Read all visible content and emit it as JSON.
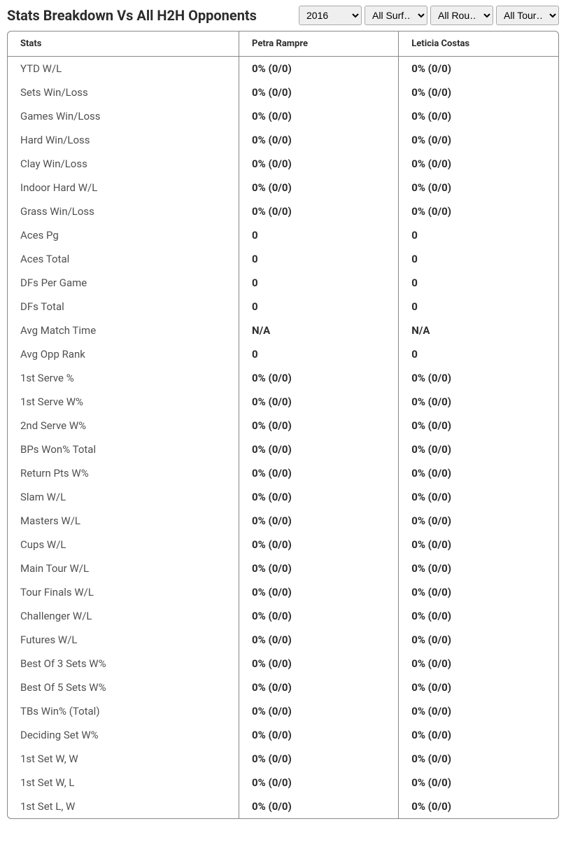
{
  "title": "Stats Breakdown Vs All H2H Opponents",
  "filters": {
    "year": "2016",
    "surface": "All Surf…",
    "round": "All Rou…",
    "tour": "All Tour…"
  },
  "table": {
    "columns": [
      "Stats",
      "Petra Rampre",
      "Leticia Costas"
    ],
    "rows": [
      {
        "stat": "YTD W/L",
        "p1": "0% (0/0)",
        "p2": "0% (0/0)"
      },
      {
        "stat": "Sets Win/Loss",
        "p1": "0% (0/0)",
        "p2": "0% (0/0)"
      },
      {
        "stat": "Games Win/Loss",
        "p1": "0% (0/0)",
        "p2": "0% (0/0)"
      },
      {
        "stat": "Hard Win/Loss",
        "p1": "0% (0/0)",
        "p2": "0% (0/0)"
      },
      {
        "stat": "Clay Win/Loss",
        "p1": "0% (0/0)",
        "p2": "0% (0/0)"
      },
      {
        "stat": "Indoor Hard W/L",
        "p1": "0% (0/0)",
        "p2": "0% (0/0)"
      },
      {
        "stat": "Grass Win/Loss",
        "p1": "0% (0/0)",
        "p2": "0% (0/0)"
      },
      {
        "stat": "Aces Pg",
        "p1": "0",
        "p2": "0"
      },
      {
        "stat": "Aces Total",
        "p1": "0",
        "p2": "0"
      },
      {
        "stat": "DFs Per Game",
        "p1": "0",
        "p2": "0"
      },
      {
        "stat": "DFs Total",
        "p1": "0",
        "p2": "0"
      },
      {
        "stat": "Avg Match Time",
        "p1": "N/A",
        "p2": "N/A"
      },
      {
        "stat": "Avg Opp Rank",
        "p1": "0",
        "p2": "0"
      },
      {
        "stat": "1st Serve %",
        "p1": "0% (0/0)",
        "p2": "0% (0/0)"
      },
      {
        "stat": "1st Serve W%",
        "p1": "0% (0/0)",
        "p2": "0% (0/0)"
      },
      {
        "stat": "2nd Serve W%",
        "p1": "0% (0/0)",
        "p2": "0% (0/0)"
      },
      {
        "stat": "BPs Won% Total",
        "p1": "0% (0/0)",
        "p2": "0% (0/0)"
      },
      {
        "stat": "Return Pts W%",
        "p1": "0% (0/0)",
        "p2": "0% (0/0)"
      },
      {
        "stat": "Slam W/L",
        "p1": "0% (0/0)",
        "p2": "0% (0/0)"
      },
      {
        "stat": "Masters W/L",
        "p1": "0% (0/0)",
        "p2": "0% (0/0)"
      },
      {
        "stat": "Cups W/L",
        "p1": "0% (0/0)",
        "p2": "0% (0/0)"
      },
      {
        "stat": "Main Tour W/L",
        "p1": "0% (0/0)",
        "p2": "0% (0/0)"
      },
      {
        "stat": "Tour Finals W/L",
        "p1": "0% (0/0)",
        "p2": "0% (0/0)"
      },
      {
        "stat": "Challenger W/L",
        "p1": "0% (0/0)",
        "p2": "0% (0/0)"
      },
      {
        "stat": "Futures W/L",
        "p1": "0% (0/0)",
        "p2": "0% (0/0)"
      },
      {
        "stat": "Best Of 3 Sets W%",
        "p1": "0% (0/0)",
        "p2": "0% (0/0)"
      },
      {
        "stat": "Best Of 5 Sets W%",
        "p1": "0% (0/0)",
        "p2": "0% (0/0)"
      },
      {
        "stat": "TBs Win% (Total)",
        "p1": "0% (0/0)",
        "p2": "0% (0/0)"
      },
      {
        "stat": "Deciding Set W%",
        "p1": "0% (0/0)",
        "p2": "0% (0/0)"
      },
      {
        "stat": "1st Set W, W",
        "p1": "0% (0/0)",
        "p2": "0% (0/0)"
      },
      {
        "stat": "1st Set W, L",
        "p1": "0% (0/0)",
        "p2": "0% (0/0)"
      },
      {
        "stat": "1st Set L, W",
        "p1": "0% (0/0)",
        "p2": "0% (0/0)"
      }
    ]
  },
  "colors": {
    "background": "#ffffff",
    "border": "#888888",
    "text_dark": "#2c2c2c",
    "text_muted": "#505050"
  }
}
